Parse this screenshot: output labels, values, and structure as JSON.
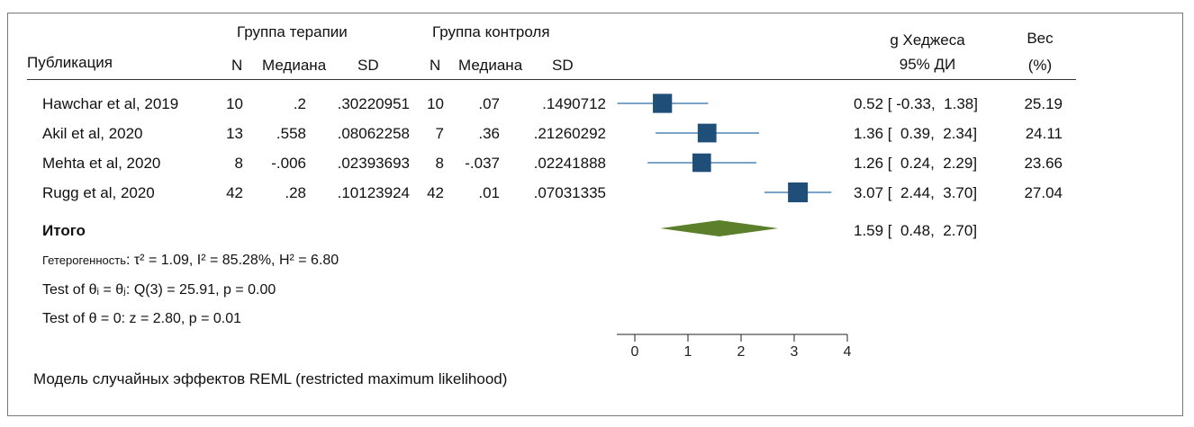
{
  "header": {
    "col_publication": "Публикация",
    "group_treatment": "Группа терапии",
    "group_control": "Группа контроля",
    "n": "N",
    "median": "Медиана",
    "sd": "SD",
    "effect_line1": "g Хеджеса",
    "effect_line2": "95% ДИ",
    "weight_line1": "Вес",
    "weight_line2": "(%)"
  },
  "rows": [
    {
      "study": "Hawchar et al, 2019",
      "n1": "10",
      "med1": ".2",
      "sd1": ".30220951",
      "n2": "10",
      "med2": ".07",
      "sd2": ".1490712",
      "ci": "0.52 [ -0.33,  1.38]",
      "weight": "25.19"
    },
    {
      "study": "Akil et al, 2020",
      "n1": "13",
      "med1": ".558",
      "sd1": ".08062258",
      "n2": "7",
      "med2": ".36",
      "sd2": ".21260292",
      "ci": "1.36 [  0.39,  2.34]",
      "weight": "24.11"
    },
    {
      "study": "Mehta et al, 2020",
      "n1": "8",
      "med1": "-.006",
      "sd1": ".02393693",
      "n2": "8",
      "med2": "-.037",
      "sd2": ".02241888",
      "ci": "1.26 [  0.24,  2.29]",
      "weight": "23.66"
    },
    {
      "study": "Rugg et al, 2020",
      "n1": "42",
      "med1": ".28",
      "sd1": ".10123924",
      "n2": "42",
      "med2": ".01",
      "sd2": ".07031335",
      "ci": "3.07 [  2.44,  3.70]",
      "weight": "27.04"
    }
  ],
  "overall": {
    "label": "Итого",
    "ci": "1.59 [  0.48,  2.70]"
  },
  "stats": {
    "heterogeneity_label": "Гетерогенность",
    "heterogeneity_values": ": τ² = 1.09, I² = 85.28%, H² = 6.80",
    "test_theta_i": "Test of θᵢ = θⱼ: Q(3) = 25.91, p = 0.00",
    "test_theta_0": "Test of θ = 0: z = 2.80, p = 0.01"
  },
  "footnote": "Модель случайных эффектов REML (restricted maximum likelihood)",
  "chart_data": {
    "type": "forest",
    "xlim": [
      -0.35,
      4
    ],
    "xticks": [
      0,
      1,
      2,
      3,
      4
    ],
    "colors": {
      "marker": "#1f4e79",
      "ci_line": "#2f6da8",
      "diamond": "#5b7f2a"
    },
    "studies": [
      {
        "name": "Hawchar et al, 2019",
        "estimate": 0.52,
        "lower": -0.33,
        "upper": 1.38,
        "weight": 25.19
      },
      {
        "name": "Akil et al, 2020",
        "estimate": 1.36,
        "lower": 0.39,
        "upper": 2.34,
        "weight": 24.11
      },
      {
        "name": "Mehta et al, 2020",
        "estimate": 1.26,
        "lower": 0.24,
        "upper": 2.29,
        "weight": 23.66
      },
      {
        "name": "Rugg et al, 2020",
        "estimate": 3.07,
        "lower": 2.44,
        "upper": 3.7,
        "weight": 27.04
      }
    ],
    "overall": {
      "estimate": 1.59,
      "lower": 0.48,
      "upper": 2.7
    }
  }
}
